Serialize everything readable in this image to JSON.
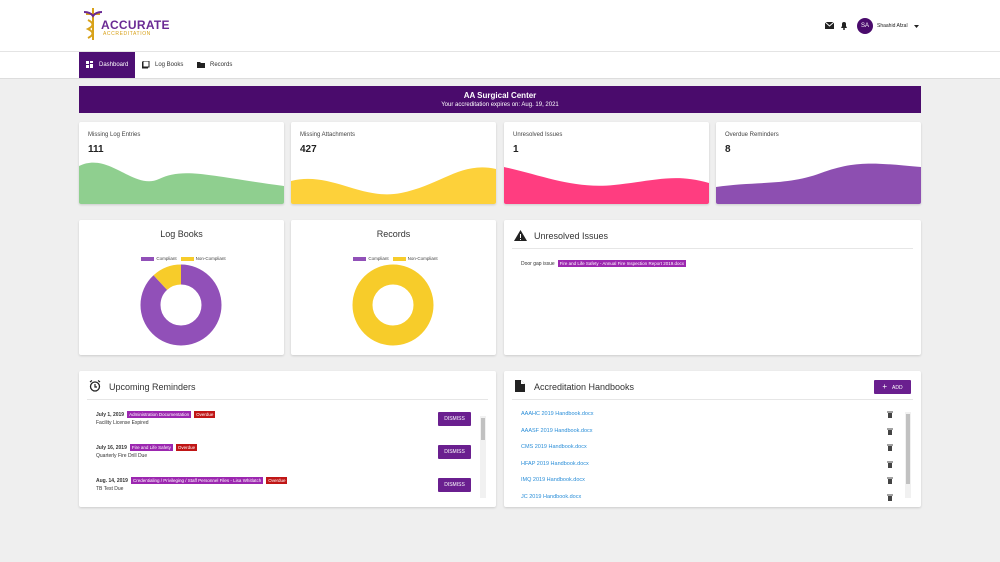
{
  "header": {
    "logo_title": "ACCURATE",
    "logo_subtitle": "ACCREDITATION",
    "user_initials": "SA",
    "user_name": "Shaahid Afzal"
  },
  "nav": [
    "Dashboard",
    "Log Books",
    "Records"
  ],
  "banner": {
    "title": "AA Surgical Center",
    "subtitle": "Your accreditation expires on: Aug. 19, 2021"
  },
  "stats": [
    {
      "label": "Missing Log Entries",
      "value": 111
    },
    {
      "label": "Missing Attachments",
      "value": 427
    },
    {
      "label": "Unresolved Issues",
      "value": 1
    },
    {
      "label": "Overdue Reminders",
      "value": 8
    }
  ],
  "log_books": {
    "title": "Log Books",
    "chart": {
      "type": "pie",
      "categories": [
        "Compliant",
        "Non-Compliant"
      ],
      "values": [
        88,
        12
      ],
      "colors": [
        "#9150b8",
        "#f7cc2a"
      ]
    }
  },
  "records": {
    "title": "Records",
    "chart": {
      "type": "pie",
      "categories": [
        "Compliant",
        "Non-Compliant"
      ],
      "values": [
        0,
        100
      ],
      "colors": [
        "#9150b8",
        "#f7cc2a"
      ]
    }
  },
  "unresolved": {
    "title": "Unresolved Issues",
    "items": [
      {
        "text": "Door gap issue",
        "tag": "Fire and Life Safety - Annual Fire Inspection Report 2019.docx"
      }
    ]
  },
  "reminders": {
    "title": "Upcoming Reminders",
    "action": "DISMISS",
    "status": "Overdue",
    "items": [
      {
        "date": "July 1, 2019",
        "tag": "Administration Documentation",
        "description": "Facility License Expired"
      },
      {
        "date": "July 16, 2019",
        "tag": "Fire and Life Safety",
        "description": "Quarterly Fire Drill Due"
      },
      {
        "date": "Aug. 14, 2019",
        "tag": "Credentialing / Privileging / Staff Personnel Files - Lisa Whitlatch",
        "description": "TB Test Due"
      }
    ]
  },
  "handbooks": {
    "title": "Accreditation Handbooks",
    "add": "ADD",
    "files": [
      "AAAHC 2019 Handbook.docx",
      "AAASF 2019 Handbook.docx",
      "CMS 2019 Handbook.docx",
      "HFAP 2019 Handbook.docx",
      "IMQ 2019 Handbook.docx",
      "JC 2019 Handbook.docx"
    ]
  }
}
